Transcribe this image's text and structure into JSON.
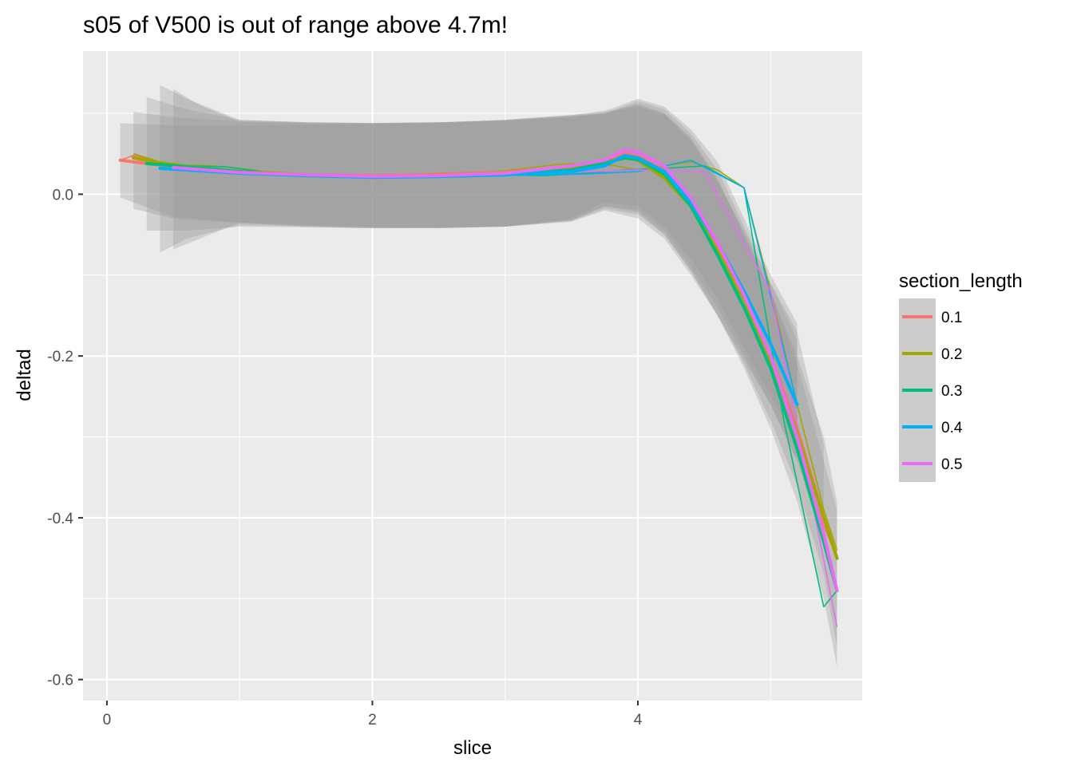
{
  "chart_data": {
    "type": "line",
    "title": "s05 of V500 is out of range above 4.7m!",
    "xlabel": "slice",
    "ylabel": "deltad",
    "xlim": [
      -0.18,
      5.69
    ],
    "ylim": [
      -0.626,
      0.177
    ],
    "xticks": [
      0,
      2,
      4
    ],
    "xtick_labels": [
      "0",
      "2",
      "4"
    ],
    "yticks": [
      0.0,
      -0.2,
      -0.4,
      -0.6
    ],
    "ytick_labels": [
      "0.0",
      "-0.2",
      "-0.4",
      "-0.6"
    ],
    "grid": true,
    "background": "#ebebeb",
    "legend": {
      "title": "section_length",
      "position": "right",
      "entries": [
        "0.1",
        "0.2",
        "0.3",
        "0.4",
        "0.5"
      ]
    },
    "series": [
      {
        "name": "0.1",
        "color": "#F8766D",
        "raw": {
          "x": [
            0.1,
            0.2,
            0.3,
            0.4,
            0.5,
            0.6,
            0.7,
            0.8,
            0.9,
            1.0,
            1.5,
            2.0,
            2.5,
            3.0,
            3.5,
            3.6,
            3.7,
            3.8,
            3.9,
            4.0,
            4.1,
            4.2,
            4.3,
            4.4,
            4.5,
            4.6,
            4.7,
            4.8,
            4.9,
            5.0,
            5.1,
            5.2,
            5.3,
            5.4,
            5.5
          ],
          "y": [
            0.042,
            0.048,
            0.044,
            0.04,
            0.037,
            0.034,
            0.033,
            0.032,
            0.031,
            0.03,
            0.025,
            0.023,
            0.026,
            0.028,
            0.034,
            0.036,
            0.04,
            0.046,
            0.052,
            0.048,
            0.04,
            0.03,
            0.015,
            -0.005,
            -0.03,
            -0.06,
            -0.095,
            -0.13,
            -0.17,
            -0.21,
            -0.26,
            -0.31,
            -0.36,
            -0.41,
            -0.45
          ]
        },
        "smooth": {
          "x": [
            0.1,
            0.5,
            1.0,
            1.5,
            2.0,
            2.5,
            3.0,
            3.5,
            3.75,
            3.9,
            4.0,
            4.2,
            4.4,
            4.6,
            4.8,
            5.0,
            5.2,
            5.4,
            5.5
          ],
          "y": [
            0.042,
            0.034,
            0.027,
            0.024,
            0.023,
            0.024,
            0.027,
            0.033,
            0.04,
            0.05,
            0.047,
            0.03,
            -0.01,
            -0.065,
            -0.125,
            -0.2,
            -0.29,
            -0.4,
            -0.45
          ]
        }
      },
      {
        "name": "0.2",
        "color": "#A3A500",
        "raw": {
          "x": [
            0.2,
            0.4,
            0.6,
            0.8,
            1.0,
            1.2,
            1.4,
            1.6,
            1.8,
            2.0,
            2.2,
            2.4,
            2.6,
            2.8,
            3.0,
            3.2,
            3.4,
            3.6,
            3.8,
            4.0,
            4.2,
            4.4,
            4.6,
            4.8,
            5.0,
            5.2,
            5.4,
            5.5
          ],
          "y": [
            0.05,
            0.04,
            0.036,
            0.035,
            0.032,
            0.028,
            0.026,
            0.024,
            0.023,
            0.023,
            0.024,
            0.025,
            0.026,
            0.027,
            0.029,
            0.033,
            0.037,
            0.038,
            0.036,
            0.03,
            0.035,
            0.04,
            0.03,
            0.008,
            -0.12,
            -0.26,
            -0.39,
            -0.44
          ]
        },
        "smooth": {
          "x": [
            0.2,
            0.5,
            1.0,
            1.5,
            2.0,
            2.5,
            3.0,
            3.5,
            3.75,
            3.9,
            4.0,
            4.2,
            4.4,
            4.6,
            4.8,
            5.0,
            5.2,
            5.4,
            5.5
          ],
          "y": [
            0.045,
            0.036,
            0.028,
            0.024,
            0.022,
            0.023,
            0.026,
            0.033,
            0.04,
            0.045,
            0.042,
            0.02,
            -0.015,
            -0.07,
            -0.13,
            -0.205,
            -0.295,
            -0.4,
            -0.45
          ]
        }
      },
      {
        "name": "0.3",
        "color": "#00BF7D",
        "raw": {
          "x": [
            0.3,
            0.6,
            0.9,
            1.2,
            1.5,
            1.8,
            2.1,
            2.4,
            2.7,
            3.0,
            3.3,
            3.6,
            3.9,
            4.2,
            4.5,
            4.8,
            5.1,
            5.4,
            5.5
          ],
          "y": [
            0.04,
            0.035,
            0.034,
            0.027,
            0.024,
            0.022,
            0.021,
            0.022,
            0.023,
            0.024,
            0.023,
            0.026,
            0.03,
            0.032,
            0.035,
            0.008,
            -0.28,
            -0.51,
            -0.49
          ]
        },
        "smooth": {
          "x": [
            0.3,
            0.6,
            1.0,
            1.5,
            2.0,
            2.5,
            3.0,
            3.5,
            3.75,
            3.9,
            4.0,
            4.2,
            4.4,
            4.6,
            4.8,
            5.0,
            5.2,
            5.4,
            5.5
          ],
          "y": [
            0.038,
            0.034,
            0.028,
            0.023,
            0.021,
            0.022,
            0.024,
            0.03,
            0.038,
            0.045,
            0.043,
            0.025,
            -0.015,
            -0.075,
            -0.14,
            -0.215,
            -0.315,
            -0.43,
            -0.49
          ]
        }
      },
      {
        "name": "0.4",
        "color": "#00B0F6",
        "raw": {
          "x": [
            0.4,
            0.8,
            1.2,
            1.6,
            2.0,
            2.4,
            2.8,
            3.2,
            3.6,
            4.0,
            4.4,
            4.8,
            5.2
          ],
          "y": [
            0.033,
            0.027,
            0.024,
            0.022,
            0.021,
            0.021,
            0.023,
            0.024,
            0.025,
            0.028,
            0.042,
            0.008,
            -0.26
          ]
        },
        "smooth": {
          "x": [
            0.4,
            0.6,
            1.0,
            1.5,
            2.0,
            2.5,
            3.0,
            3.5,
            3.75,
            3.9,
            4.0,
            4.2,
            4.4,
            4.6,
            4.8,
            5.0,
            5.2
          ],
          "y": [
            0.032,
            0.03,
            0.026,
            0.023,
            0.021,
            0.022,
            0.024,
            0.028,
            0.035,
            0.048,
            0.045,
            0.028,
            -0.01,
            -0.06,
            -0.12,
            -0.185,
            -0.26
          ]
        }
      },
      {
        "name": "0.5",
        "color": "#E76BF3",
        "raw": {
          "x": [
            0.5,
            1.0,
            1.5,
            2.0,
            2.5,
            3.0,
            3.5,
            4.0,
            4.5,
            5.0,
            5.5
          ],
          "y": [
            0.032,
            0.026,
            0.024,
            0.022,
            0.022,
            0.024,
            0.027,
            0.03,
            0.028,
            -0.12,
            -0.535
          ]
        },
        "smooth": {
          "x": [
            0.5,
            1.0,
            1.5,
            2.0,
            2.5,
            3.0,
            3.5,
            3.75,
            3.9,
            4.0,
            4.2,
            4.4,
            4.6,
            4.8,
            5.0,
            5.2,
            5.4,
            5.5
          ],
          "y": [
            0.033,
            0.027,
            0.024,
            0.022,
            0.023,
            0.026,
            0.035,
            0.042,
            0.055,
            0.052,
            0.035,
            -0.005,
            -0.06,
            -0.125,
            -0.2,
            -0.3,
            -0.42,
            -0.49
          ]
        }
      }
    ],
    "ribbons": [
      {
        "name": "0.1",
        "x": [
          0.1,
          0.5,
          1.0,
          1.5,
          2.0,
          2.5,
          3.0,
          3.5,
          3.75,
          4.0,
          4.2,
          4.4,
          4.6,
          4.8,
          5.0,
          5.2
        ],
        "lower": [
          -0.004,
          -0.028,
          -0.035,
          -0.038,
          -0.04,
          -0.041,
          -0.04,
          -0.03,
          -0.01,
          -0.015,
          -0.04,
          -0.08,
          -0.13,
          -0.19,
          -0.25,
          -0.3
        ],
        "upper": [
          0.088,
          0.085,
          0.085,
          0.086,
          0.087,
          0.088,
          0.092,
          0.098,
          0.103,
          0.118,
          0.108,
          0.08,
          0.04,
          -0.03,
          -0.1,
          -0.16
        ]
      },
      {
        "name": "0.2",
        "x": [
          0.2,
          0.5,
          1.0,
          1.5,
          2.0,
          2.5,
          3.0,
          3.5,
          3.75,
          4.0,
          4.2,
          4.4,
          4.6,
          4.8,
          5.0,
          5.2,
          5.4
        ],
        "lower": [
          -0.018,
          -0.03,
          -0.036,
          -0.039,
          -0.041,
          -0.041,
          -0.04,
          -0.032,
          -0.015,
          -0.02,
          -0.045,
          -0.09,
          -0.14,
          -0.2,
          -0.26,
          -0.33,
          -0.43
        ],
        "upper": [
          0.102,
          0.095,
          0.09,
          0.088,
          0.088,
          0.089,
          0.092,
          0.097,
          0.1,
          0.115,
          0.105,
          0.075,
          0.03,
          -0.04,
          -0.11,
          -0.17,
          -0.31
        ]
      },
      {
        "name": "0.3",
        "x": [
          0.3,
          0.6,
          1.0,
          1.5,
          2.0,
          2.5,
          3.0,
          3.5,
          3.75,
          4.0,
          4.2,
          4.4,
          4.6,
          4.8,
          5.0,
          5.2,
          5.4,
          5.5
        ],
        "lower": [
          -0.045,
          -0.045,
          -0.04,
          -0.041,
          -0.042,
          -0.042,
          -0.04,
          -0.033,
          -0.018,
          -0.025,
          -0.05,
          -0.095,
          -0.15,
          -0.21,
          -0.28,
          -0.36,
          -0.47,
          -0.56
        ],
        "upper": [
          0.12,
          0.105,
          0.092,
          0.089,
          0.088,
          0.089,
          0.091,
          0.096,
          0.1,
          0.112,
          0.1,
          0.07,
          0.02,
          -0.05,
          -0.12,
          -0.2,
          -0.3,
          -0.38
        ]
      },
      {
        "name": "0.4",
        "x": [
          0.4,
          0.6,
          1.0,
          1.5,
          2.0,
          2.5,
          3.0,
          3.5,
          3.75,
          4.0,
          4.2,
          4.4,
          4.6,
          4.8,
          5.0,
          5.2
        ],
        "lower": [
          -0.072,
          -0.055,
          -0.038,
          -0.04,
          -0.042,
          -0.042,
          -0.04,
          -0.034,
          -0.02,
          -0.03,
          -0.055,
          -0.1,
          -0.15,
          -0.205,
          -0.26,
          -0.33
        ],
        "upper": [
          0.135,
          0.118,
          0.092,
          0.089,
          0.088,
          0.089,
          0.091,
          0.095,
          0.1,
          0.108,
          0.098,
          0.065,
          0.015,
          -0.045,
          -0.11,
          -0.18
        ]
      },
      {
        "name": "0.5",
        "x": [
          0.5,
          0.7,
          1.0,
          1.5,
          2.0,
          2.5,
          3.0,
          3.5,
          3.75,
          4.0,
          4.2,
          4.4,
          4.6,
          4.8,
          5.0,
          5.2,
          5.4,
          5.5
        ],
        "lower": [
          -0.068,
          -0.055,
          -0.035,
          -0.04,
          -0.042,
          -0.042,
          -0.04,
          -0.032,
          -0.015,
          -0.022,
          -0.05,
          -0.095,
          -0.15,
          -0.215,
          -0.29,
          -0.38,
          -0.5,
          -0.585
        ],
        "upper": [
          0.13,
          0.11,
          0.09,
          0.089,
          0.088,
          0.089,
          0.092,
          0.098,
          0.102,
          0.11,
          0.1,
          0.068,
          0.018,
          -0.05,
          -0.12,
          -0.21,
          -0.33,
          -0.39
        ]
      }
    ]
  }
}
